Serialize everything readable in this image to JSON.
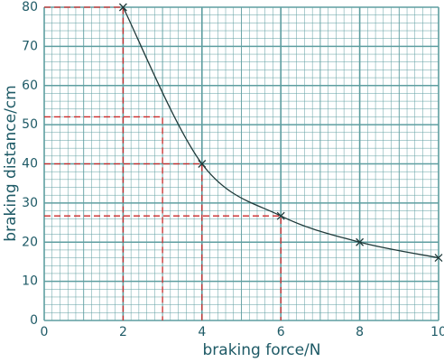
{
  "chart_data": {
    "type": "line",
    "xlabel": "braking force/N",
    "ylabel": "braking distance/cm",
    "series": [
      {
        "x": [
          2,
          4,
          6,
          8,
          10
        ],
        "values": [
          80,
          40,
          26.7,
          20,
          16
        ],
        "color": "#1f3a3a"
      }
    ],
    "guides": [
      {
        "x": 2,
        "y": 80
      },
      {
        "x": 3,
        "y": 52
      },
      {
        "x": 4,
        "y": 40
      },
      {
        "x": 6,
        "y": 26.7
      }
    ],
    "guide_color": "#cc2a2a",
    "xlim": [
      0,
      10
    ],
    "xticks": [
      0,
      2,
      4,
      6,
      8,
      10
    ],
    "ylim": [
      0,
      80
    ],
    "yticks": [
      0,
      10,
      20,
      30,
      40,
      50,
      60,
      70,
      80
    ],
    "grid": true,
    "grid_color": "#5e9ea0"
  }
}
